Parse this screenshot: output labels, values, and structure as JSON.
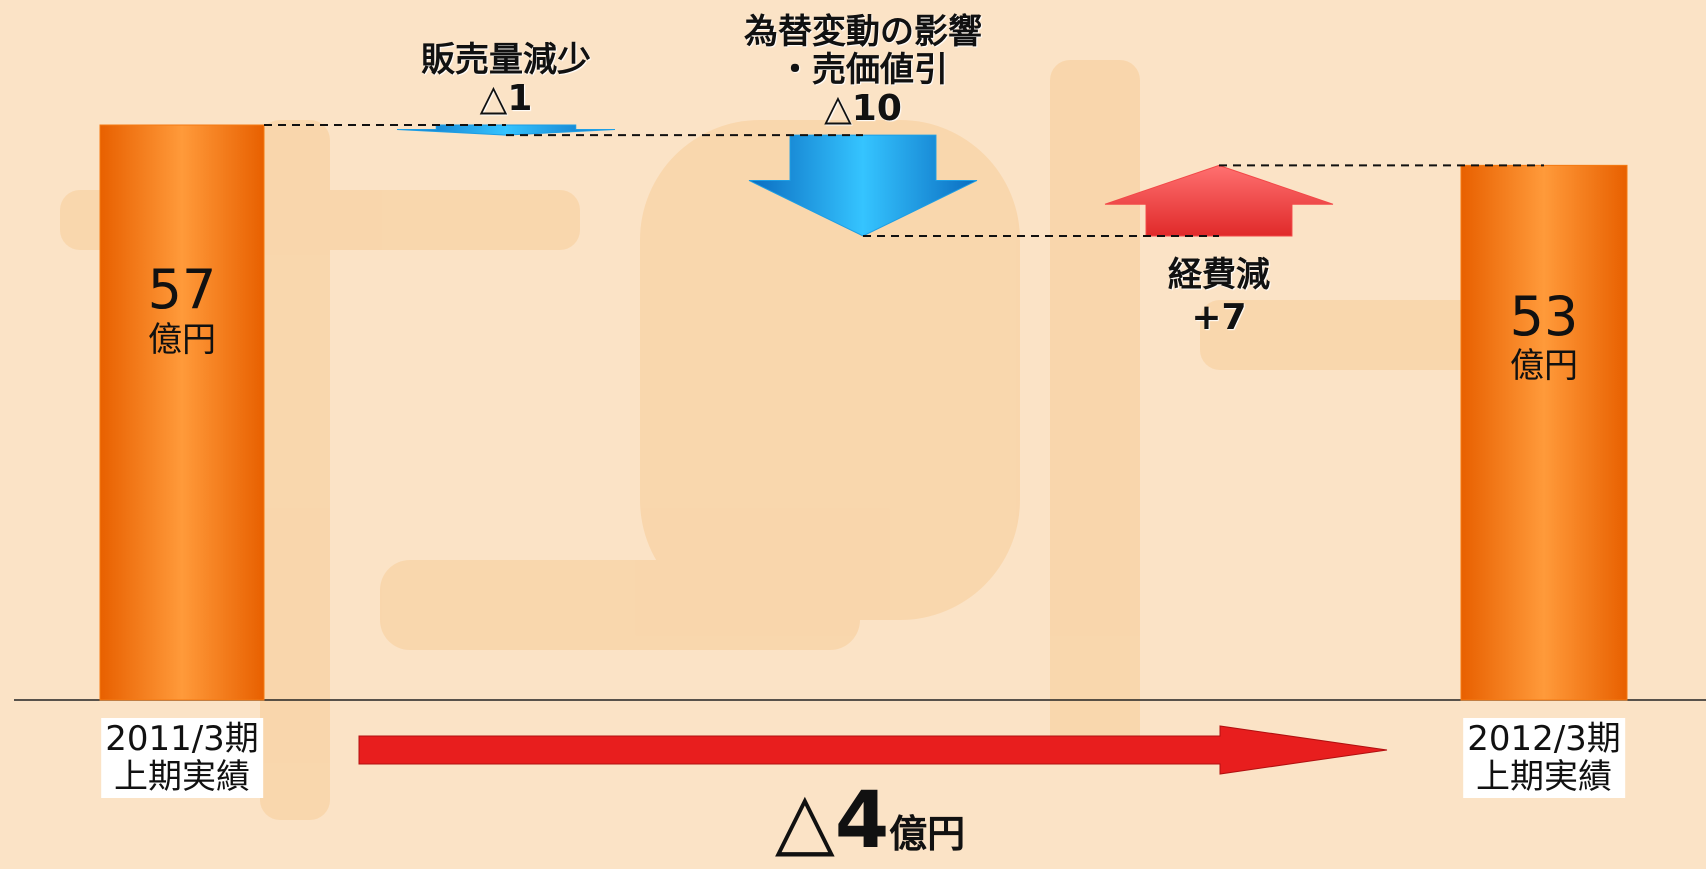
{
  "chart_data": {
    "type": "waterfall",
    "categories": [
      "2011/3期\n上期実績",
      "販売量減少",
      "為替変動の影響\n・売価値引",
      "経費減",
      "2012/3期\n上期実績"
    ],
    "measures": [
      "absolute",
      "relative",
      "relative",
      "relative",
      "absolute"
    ],
    "values": [
      57,
      -1,
      -10,
      7,
      53
    ],
    "value_labels": [
      "57",
      "△1",
      "△10",
      "+7",
      "53"
    ],
    "unit": "億円",
    "total_change": -4,
    "total_change_label": "△4",
    "colors": {
      "absolute": "#f47a12",
      "decrease": "#1e9ee4",
      "increase": "#f24848",
      "total_change": "#e81e1e"
    }
  }
}
